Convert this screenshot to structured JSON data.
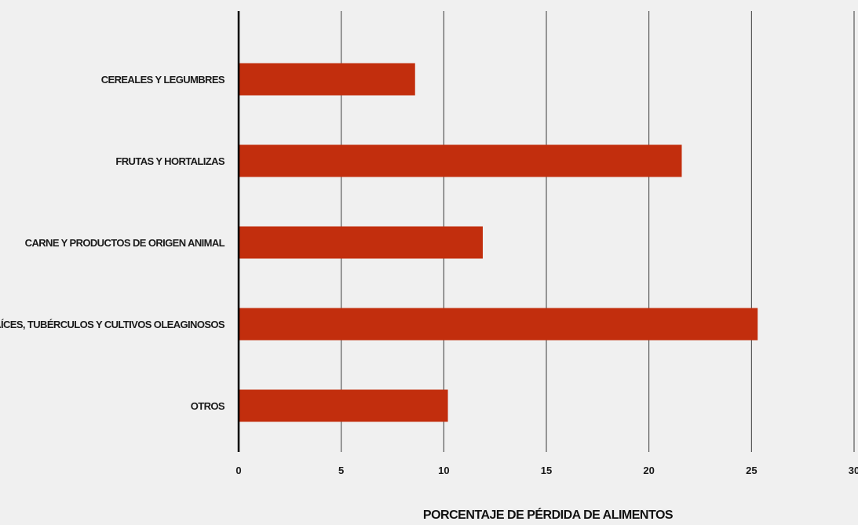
{
  "chart_data": {
    "type": "bar",
    "orientation": "horizontal",
    "categories": [
      "CEREALES Y LEGUMBRES",
      "FRUTAS Y HORTALIZAS",
      "CARNE Y PRODUCTOS DE ORIGEN ANIMAL",
      "RAÍCES, TUBÉRCULOS Y CULTIVOS OLEAGINOSOS",
      "OTROS"
    ],
    "values": [
      8.6,
      21.6,
      11.9,
      25.3,
      10.2
    ],
    "xlabel": "PORCENTAJE DE PÉRDIDA DE ALIMENTOS",
    "ylabel": "",
    "xlim": [
      0,
      30
    ],
    "xticks": [
      "0",
      "5",
      "10",
      "15",
      "20",
      "25",
      "30"
    ],
    "grid": true,
    "legend": "none",
    "colors": {
      "bar": "#c22e0d",
      "grid": "#3a3a3a",
      "axis": "#000000",
      "background": "#f0f0f0"
    }
  }
}
